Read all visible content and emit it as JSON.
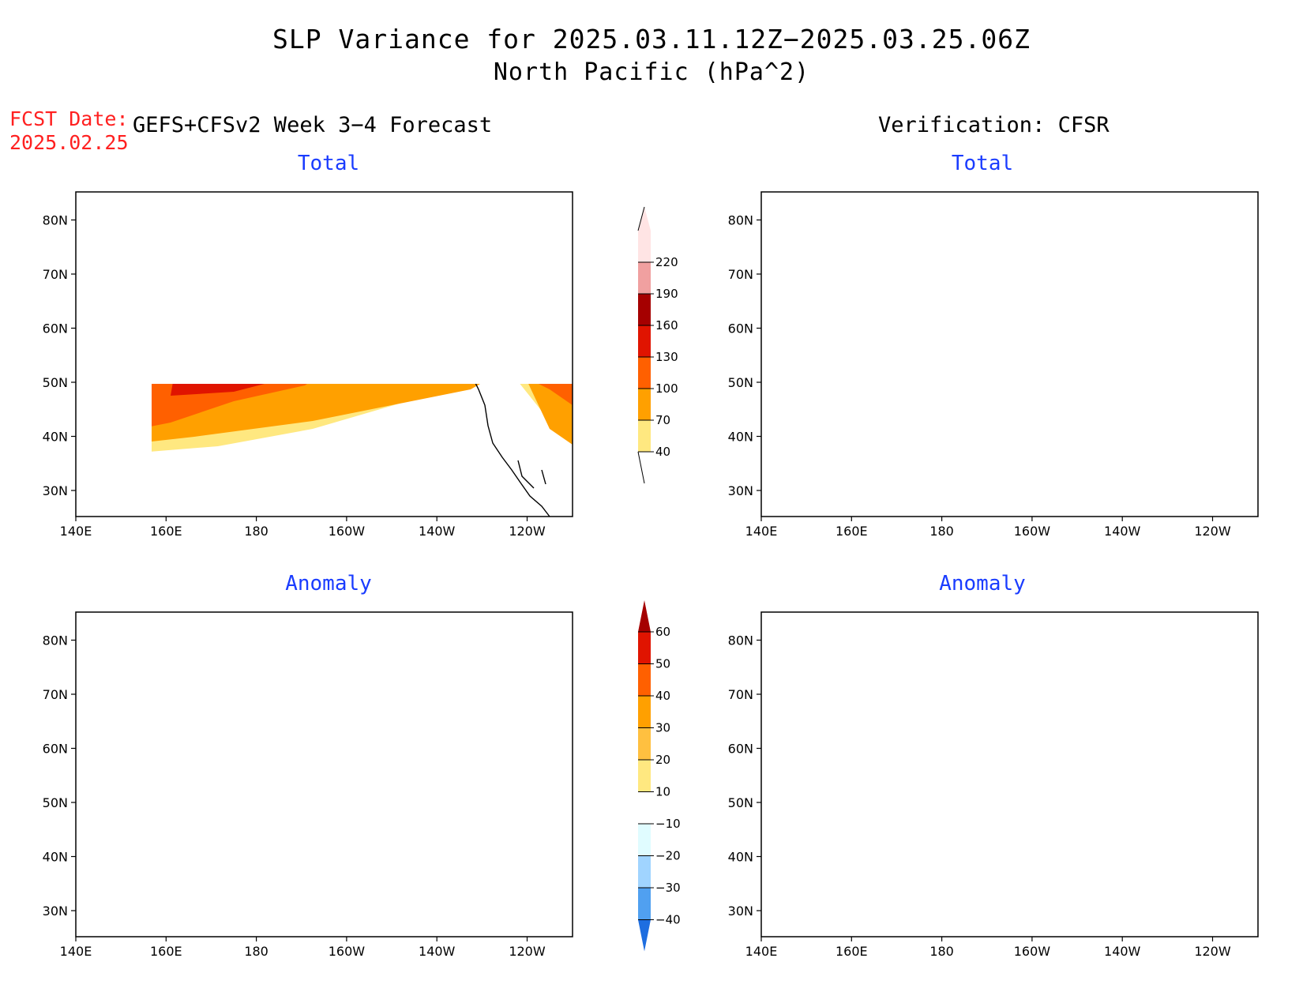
{
  "title": {
    "line1": "SLP Variance for 2025.03.11.12Z−2025.03.25.06Z",
    "line2": "North Pacific (hPa^2)"
  },
  "forecast": {
    "label": "FCST Date:",
    "date": "2025.02.25",
    "header": "GEFS+CFSv2 Week 3−4 Forecast"
  },
  "verification": {
    "header": "Verification: CFSR"
  },
  "panels": {
    "total_label": "Total",
    "anomaly_label": "Anomaly"
  },
  "axes": {
    "lat_labels": [
      "30N",
      "40N",
      "50N",
      "60N",
      "70N",
      "80N"
    ],
    "lon_labels": [
      "140E",
      "160E",
      "180",
      "160W",
      "140W",
      "120W"
    ]
  },
  "colorbars": {
    "total": {
      "levels": [
        "40",
        "70",
        "100",
        "130",
        "160",
        "190",
        "220"
      ],
      "colors": [
        "#ffe880",
        "#ffa000",
        "#ff6000",
        "#e01400",
        "#a50000",
        "#f0a0a0",
        "#ffe4e4"
      ]
    },
    "anomaly": {
      "levels": [
        "60",
        "50",
        "40",
        "30",
        "20",
        "10",
        "−10",
        "−20",
        "−30",
        "−40"
      ],
      "colors": [
        "#a50000",
        "#e01400",
        "#ff6000",
        "#ffa000",
        "#ffc040",
        "#ffe880",
        "#ffffff",
        "#e0fcff",
        "#a0d4ff",
        "#50a0f0",
        "#1e6ee0"
      ]
    }
  }
}
